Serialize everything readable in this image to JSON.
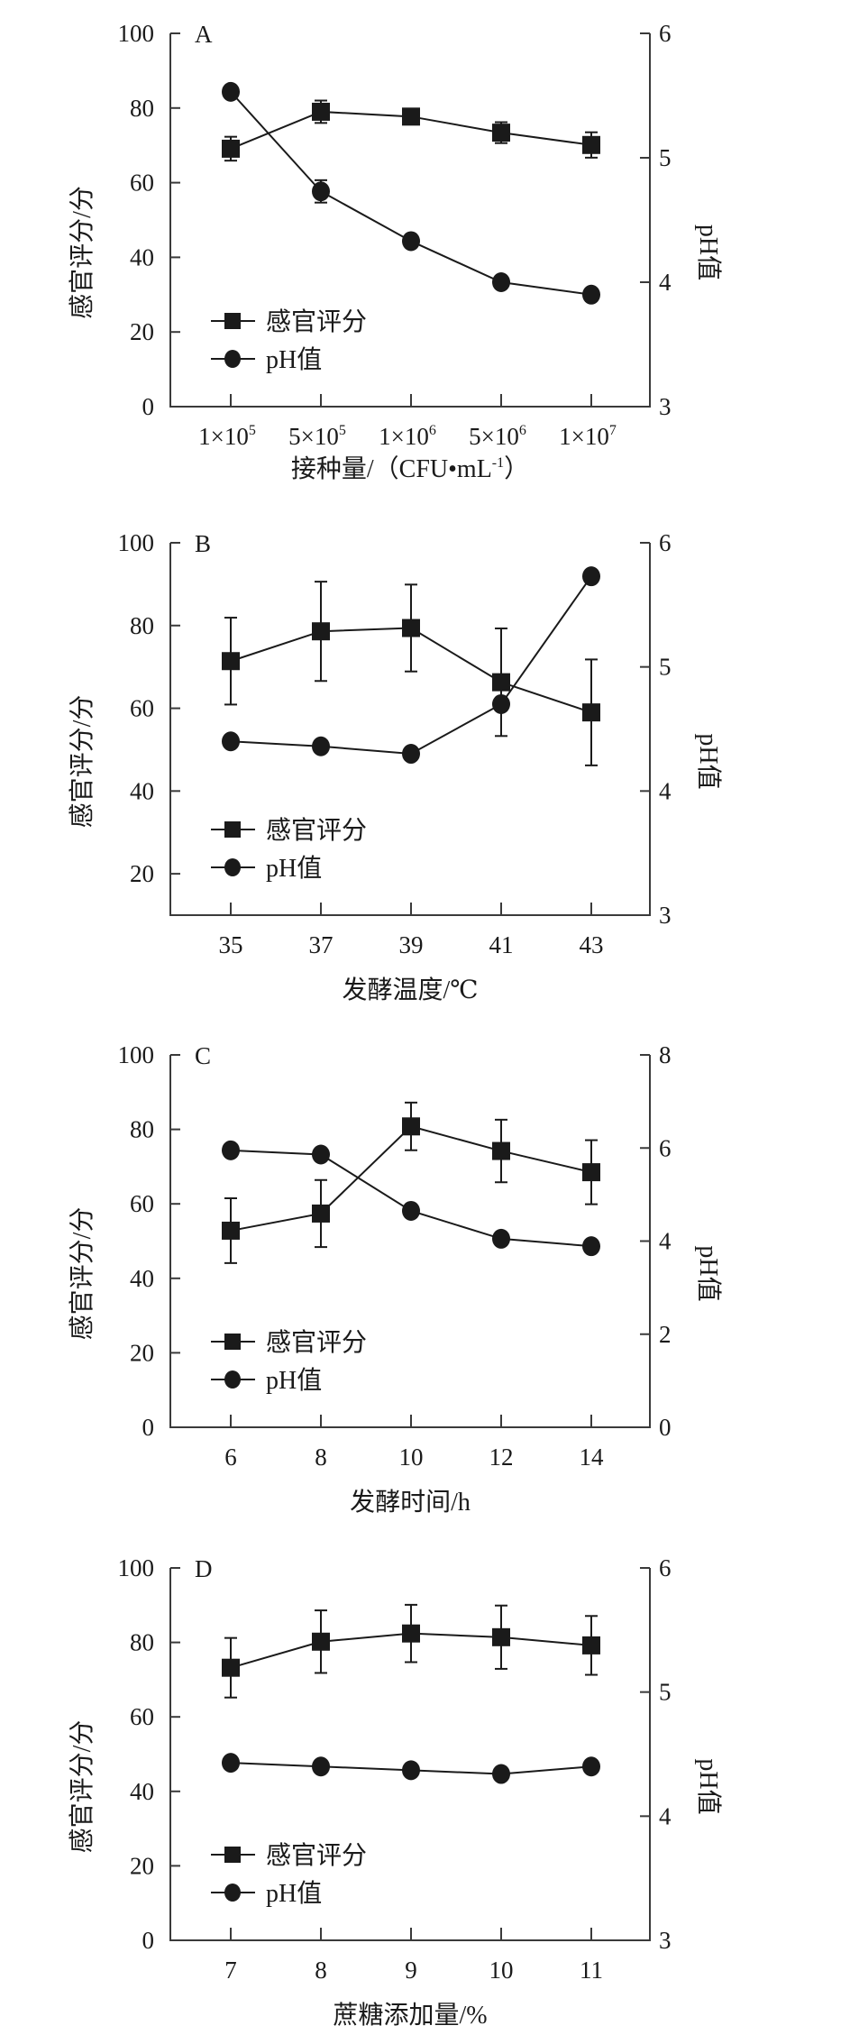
{
  "chart_data": [
    {
      "type": "line",
      "panel": "A",
      "xlabel": "接种量/（CFU•mL-1）",
      "xlabel_parts": {
        "main": "接种量/（CFU•mL",
        "sup": "-1",
        "end": "）"
      },
      "ylabel": "感官评分/分",
      "y2label": "pH值",
      "categories": [
        {
          "base": "1×10",
          "exp": "5"
        },
        {
          "base": "5×10",
          "exp": "5"
        },
        {
          "base": "1×10",
          "exp": "6"
        },
        {
          "base": "5×10",
          "exp": "6"
        },
        {
          "base": "1×10",
          "exp": "7"
        }
      ],
      "ylim": [
        0,
        100
      ],
      "yticks": [
        0,
        20,
        40,
        60,
        80,
        100
      ],
      "y2lim": [
        3,
        6
      ],
      "y2ticks": [
        3,
        4,
        5,
        6
      ],
      "legend_position": "lower-left",
      "series": [
        {
          "name": "感官评分",
          "marker": "square",
          "axis": "left",
          "values": [
            69.1,
            79.0,
            77.7,
            73.4,
            70.1
          ],
          "errors": [
            3.2,
            3.0,
            2.0,
            2.8,
            3.4
          ]
        },
        {
          "name": "pH值",
          "marker": "circle",
          "axis": "right",
          "values": [
            5.53,
            4.73,
            4.33,
            4.0,
            3.9
          ],
          "errors": [
            0.02,
            0.09,
            0.03,
            0.02,
            0.02
          ]
        }
      ]
    },
    {
      "type": "line",
      "panel": "B",
      "xlabel": "发酵温度/℃",
      "ylabel": "感官评分/分",
      "y2label": "pH值",
      "categories": [
        "35",
        "37",
        "39",
        "41",
        "43"
      ],
      "ylim": [
        10,
        100
      ],
      "yticks": [
        20,
        40,
        60,
        80,
        100
      ],
      "y2lim": [
        3,
        6
      ],
      "y2ticks": [
        3,
        4,
        5,
        6
      ],
      "legend_position": "lower-left",
      "series": [
        {
          "name": "感官评分",
          "marker": "square",
          "axis": "left",
          "values": [
            71.4,
            78.6,
            79.4,
            66.3,
            59.0
          ],
          "errors": [
            10.5,
            12.0,
            10.5,
            13.0,
            12.8
          ]
        },
        {
          "name": "pH值",
          "marker": "circle",
          "axis": "right",
          "values": [
            4.4,
            4.36,
            4.3,
            4.7,
            5.73
          ],
          "errors": [
            0.02,
            0.04,
            0.02,
            0.05,
            0.04
          ]
        }
      ]
    },
    {
      "type": "line",
      "panel": "C",
      "xlabel": "发酵时间/h",
      "ylabel": "感官评分/分",
      "y2label": "pH值",
      "categories": [
        "6",
        "8",
        "10",
        "12",
        "14"
      ],
      "ylim": [
        0,
        100
      ],
      "yticks": [
        0,
        20,
        40,
        60,
        80,
        100
      ],
      "y2lim": [
        0,
        8
      ],
      "y2ticks": [
        0,
        2,
        4,
        6,
        8
      ],
      "legend_position": "lower-left",
      "series": [
        {
          "name": "感官评分",
          "marker": "square",
          "axis": "left",
          "values": [
            52.8,
            57.4,
            80.8,
            74.2,
            68.5
          ],
          "errors": [
            8.7,
            9.0,
            6.4,
            8.4,
            8.6
          ]
        },
        {
          "name": "pH值",
          "marker": "circle",
          "axis": "right",
          "values": [
            5.95,
            5.86,
            4.65,
            4.05,
            3.89
          ],
          "errors": [
            0.05,
            0.05,
            0.1,
            0.05,
            0.05
          ]
        }
      ]
    },
    {
      "type": "line",
      "panel": "D",
      "xlabel": "蔗糖添加量/%",
      "ylabel": "感官评分/分",
      "y2label": "pH值",
      "categories": [
        "7",
        "8",
        "9",
        "10",
        "11"
      ],
      "ylim": [
        0,
        100
      ],
      "yticks": [
        0,
        20,
        40,
        60,
        80,
        100
      ],
      "y2lim": [
        3,
        6
      ],
      "y2ticks": [
        3,
        4,
        5,
        6
      ],
      "legend_position": "lower-left",
      "series": [
        {
          "name": "感官评分",
          "marker": "square",
          "axis": "left",
          "values": [
            73.2,
            80.2,
            82.4,
            81.4,
            79.2
          ],
          "errors": [
            8.0,
            8.4,
            7.7,
            8.5,
            7.9
          ]
        },
        {
          "name": "pH值",
          "marker": "circle",
          "axis": "right",
          "values": [
            4.43,
            4.4,
            4.37,
            4.34,
            4.4
          ],
          "errors": [
            0.05,
            0.02,
            0.05,
            0.05,
            0.02
          ]
        }
      ]
    }
  ],
  "colors": {
    "line": "#1a1a1a",
    "axis": "#3a3a3a",
    "background": "#ffffff"
  }
}
